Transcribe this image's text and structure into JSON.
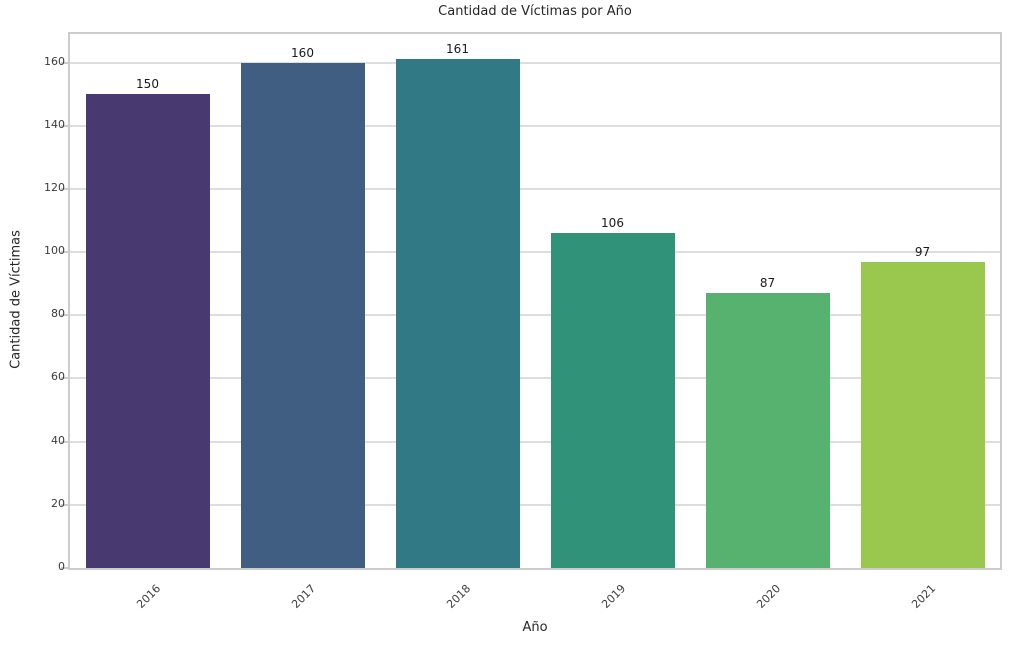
{
  "chart": {
    "title": "Cantidad de Víctimas por Año",
    "xlabel": "Año",
    "ylabel": "Cantidad de Víctimas"
  },
  "chart_data": {
    "type": "bar",
    "title": "Cantidad de Víctimas por Año",
    "xlabel": "Año",
    "ylabel": "Cantidad de Víctimas",
    "categories": [
      "2016",
      "2017",
      "2018",
      "2019",
      "2020",
      "2021"
    ],
    "values": [
      150,
      160,
      161,
      106,
      87,
      97
    ],
    "bar_labels": [
      "150",
      "160",
      "161",
      "106",
      "87",
      "97"
    ],
    "bar_colors": [
      "#483a71",
      "#405d82",
      "#317984",
      "#2f9279",
      "#57b16f",
      "#9ac74d"
    ],
    "yticks": [
      0,
      20,
      40,
      60,
      80,
      100,
      120,
      140,
      160
    ],
    "ylim": [
      0,
      169.05
    ],
    "grid": true,
    "legend_position": "none",
    "xtick_rotation_deg": 45,
    "bar_width_fraction": 0.8
  },
  "colors": {
    "background": "#ffffff",
    "gridline": "#dddddd",
    "spine": "#cccccc",
    "tick_label": "#3b3b3b",
    "text": "#262626"
  }
}
